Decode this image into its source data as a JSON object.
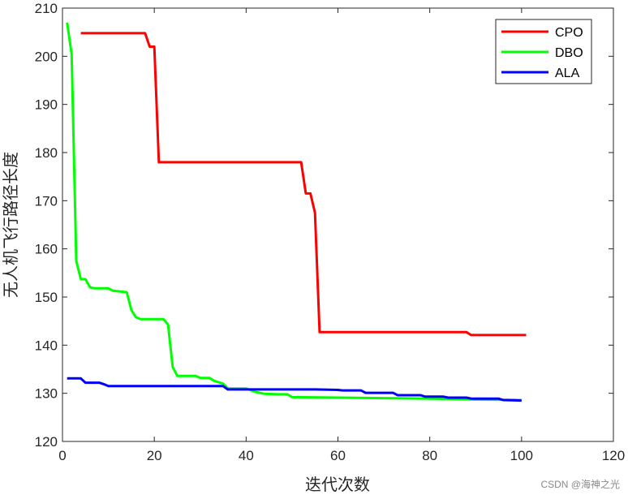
{
  "chart_data": {
    "type": "line",
    "title": "",
    "xlabel": "迭代次数",
    "ylabel": "无人机飞行路径长度",
    "xlim": [
      0,
      120
    ],
    "ylim": [
      120,
      210
    ],
    "xticks": [
      0,
      20,
      40,
      60,
      80,
      100,
      120
    ],
    "yticks": [
      120,
      130,
      140,
      150,
      160,
      170,
      180,
      190,
      200,
      210
    ],
    "grid": false,
    "legend_position": "top-right",
    "series": [
      {
        "name": "CPO",
        "color": "#ff0000",
        "x": [
          4,
          18,
          19,
          20,
          21,
          52,
          53,
          54,
          55,
          56,
          88,
          89,
          101
        ],
        "y": [
          204.8,
          204.8,
          202,
          202,
          178,
          178,
          171.5,
          171.5,
          167.5,
          142.7,
          142.7,
          142.1,
          142.1
        ]
      },
      {
        "name": "DBO",
        "color": "#00ff00",
        "x": [
          1,
          2,
          3,
          4,
          5,
          6,
          7,
          10,
          11,
          14,
          15,
          16,
          17,
          22,
          23,
          24,
          25,
          29,
          30,
          32,
          33,
          34,
          35,
          36,
          40,
          42,
          44,
          47,
          49,
          50,
          60,
          70,
          80,
          90,
          100
        ],
        "y": [
          207,
          200.5,
          157.5,
          153.7,
          153.7,
          152,
          151.8,
          151.8,
          151.3,
          151.0,
          147.3,
          145.8,
          145.4,
          145.4,
          144.3,
          135.5,
          133.6,
          133.6,
          133.2,
          133.2,
          132.6,
          132.3,
          132.0,
          131.0,
          131.0,
          130.3,
          129.9,
          129.8,
          129.8,
          129.2,
          129.1,
          129.0,
          128.9,
          128.7,
          128.6
        ]
      },
      {
        "name": "ALA",
        "color": "#0000ff",
        "x": [
          1,
          4,
          5,
          8,
          9,
          10,
          35,
          36,
          55,
          60,
          61,
          65,
          66,
          72,
          73,
          78,
          79,
          83,
          84,
          88,
          89,
          95,
          96,
          100
        ],
        "y": [
          133.1,
          133.1,
          132.2,
          132.2,
          131.9,
          131.5,
          131.5,
          130.8,
          130.8,
          130.7,
          130.6,
          130.6,
          130.1,
          130.1,
          129.6,
          129.6,
          129.3,
          129.3,
          129.1,
          129.1,
          128.9,
          128.9,
          128.6,
          128.5
        ]
      }
    ]
  },
  "watermark": "CSDN @海神之光"
}
